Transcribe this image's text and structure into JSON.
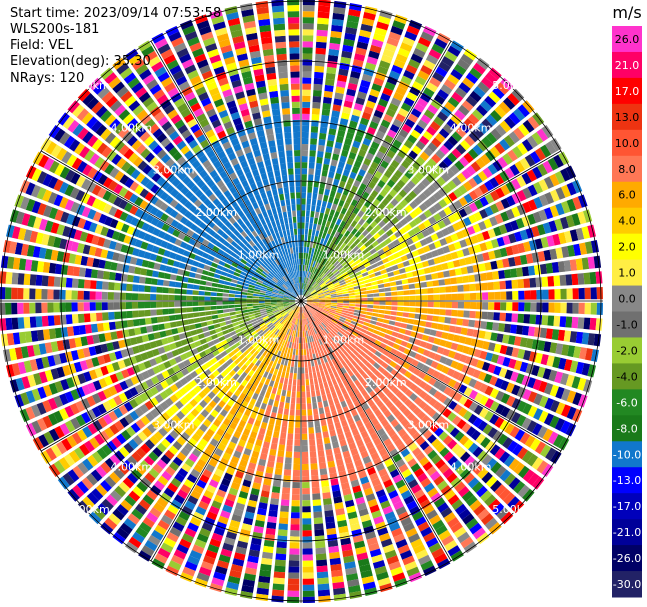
{
  "header": {
    "start_time": "Start time: 2023/09/14 07:53:58",
    "instrument": "WLS200s-181",
    "field": "Field: VEL",
    "elevation": "Elevation(deg): 35.30",
    "nrays": "NRays: 120"
  },
  "chart_data": {
    "type": "heatmap",
    "projection": "polar-ppi",
    "field": "VEL",
    "n_rays": 120,
    "ring_labels": [
      "1.00km",
      "2.00km",
      "3.00km",
      "4.00km",
      "5.00km"
    ],
    "ring_label_directions": [
      "north-west",
      "north-east",
      "south-west",
      "south-east"
    ],
    "azimuth_lines_deg": [
      0,
      30,
      60,
      90,
      120,
      150,
      180,
      210,
      240,
      270,
      300,
      330
    ],
    "colorbar": {
      "unit": "m/s",
      "ticks": [
        "26.0",
        "21.0",
        "17.0",
        "13.0",
        "10.0",
        "8.0",
        "6.0",
        "4.0",
        "2.0",
        "1.0",
        "0.0",
        "-1.0",
        "-2.0",
        "-4.0",
        "-6.0",
        "-8.0",
        "-10.0",
        "-13.0",
        "-17.0",
        "-21.0",
        "-26.0",
        "-30.0"
      ],
      "colors": [
        "#ff33cc",
        "#ff0066",
        "#ff0000",
        "#ee3311",
        "#ff5533",
        "#ff7755",
        "#ffaa00",
        "#ffcc00",
        "#ffff00",
        "#ffee44",
        "#888888",
        "#707070",
        "#99cc33",
        "#669922",
        "#228822",
        "#1a7a1a",
        "#1177cc",
        "#0000ff",
        "#0000bb",
        "#000099",
        "#000066",
        "#222266"
      ]
    },
    "pattern": {
      "inner_region_km": 3.0,
      "north_sector": "negative (green)",
      "east_sector": "positive (orange)",
      "south_sector": "positive (yellow)",
      "west_sector": "negative (blue)",
      "near_zero_band": "grey",
      "outer_region": "noise"
    }
  }
}
